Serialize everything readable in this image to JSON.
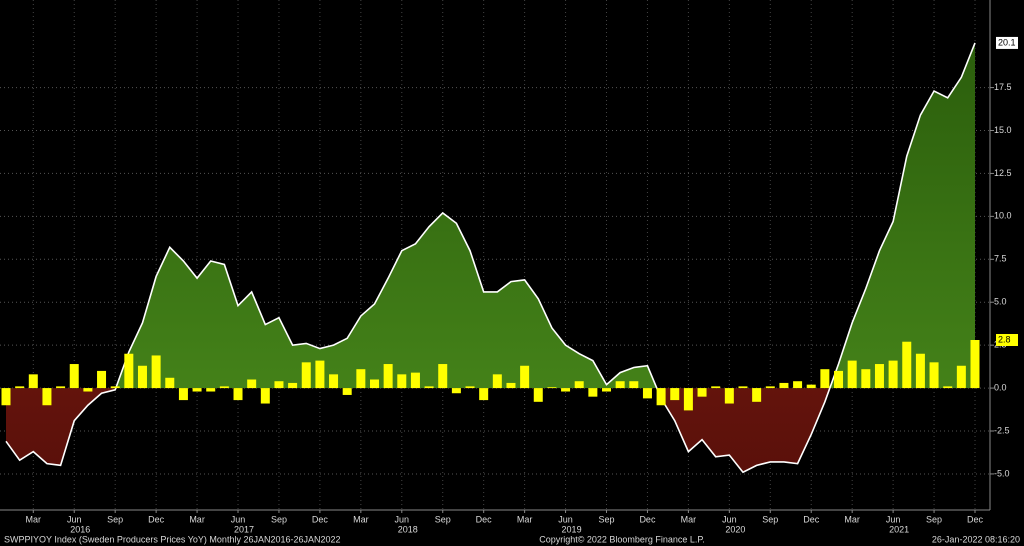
{
  "chart_data": {
    "type": "combo",
    "categories": [
      null,
      null,
      "Mar",
      null,
      null,
      "Jun",
      null,
      null,
      "Sep",
      null,
      null,
      "Dec",
      null,
      null,
      "Mar",
      null,
      null,
      "Jun",
      null,
      null,
      "Sep",
      null,
      null,
      "Dec",
      null,
      null,
      "Mar",
      null,
      null,
      "Jun",
      null,
      null,
      "Sep",
      null,
      null,
      "Dec",
      null,
      null,
      "Mar",
      null,
      null,
      "Jun",
      null,
      null,
      "Sep",
      null,
      null,
      "Dec",
      null,
      null,
      "Mar",
      null,
      null,
      "Jun",
      null,
      null,
      "Sep",
      null,
      null,
      "Dec",
      null,
      null,
      "Mar",
      null,
      null,
      "Jun",
      null,
      null,
      "Sep",
      null,
      null,
      "Dec"
    ],
    "years": [
      "2016",
      "2017",
      "2018",
      "2019",
      "2020",
      "2021"
    ],
    "series": [
      {
        "type": "area",
        "color": "#ffffff",
        "positive_color": "#3f7d14",
        "negative_color": "#7a1c12",
        "values": [
          -3.1,
          -4.2,
          -3.7,
          -4.4,
          -4.5,
          -1.9,
          -1.0,
          -0.3,
          -0.1,
          2.1,
          3.8,
          6.5,
          8.2,
          7.4,
          6.4,
          7.4,
          7.2,
          4.8,
          5.6,
          3.7,
          4.1,
          2.5,
          2.6,
          2.3,
          2.5,
          2.9,
          4.2,
          4.9,
          6.4,
          8.0,
          8.4,
          9.4,
          10.2,
          9.6,
          8.0,
          5.6,
          5.6,
          6.2,
          6.3,
          5.2,
          3.5,
          2.5,
          2.0,
          1.6,
          0.2,
          0.9,
          1.2,
          1.3,
          -0.6,
          -1.9,
          -3.7,
          -3.0,
          -4.0,
          -3.9,
          -4.9,
          -4.5,
          -4.3,
          -4.3,
          -4.4,
          -2.7,
          -0.8,
          1.4,
          3.8,
          5.8,
          8.0,
          9.7,
          13.5,
          15.9,
          17.3,
          16.9,
          18.1,
          20.1
        ]
      },
      {
        "type": "bar",
        "color": "#ffff00",
        "values": [
          -1.0,
          0.1,
          0.8,
          -1.0,
          0.1,
          1.4,
          -0.2,
          1.0,
          0.1,
          2.0,
          1.3,
          1.9,
          0.6,
          -0.7,
          -0.2,
          -0.2,
          0.1,
          -0.7,
          0.5,
          -0.9,
          0.4,
          0.3,
          1.5,
          1.6,
          0.8,
          -0.4,
          1.1,
          0.5,
          1.4,
          0.8,
          0.9,
          0.1,
          1.4,
          -0.3,
          0.1,
          -0.7,
          0.8,
          0.3,
          1.3,
          -0.8,
          0.05,
          -0.2,
          0.4,
          -0.5,
          -0.2,
          0.4,
          0.4,
          -0.6,
          -1.0,
          -0.7,
          -1.3,
          -0.5,
          0.1,
          -0.9,
          0.1,
          -0.8,
          0.1,
          0.3,
          0.4,
          0.2,
          1.1,
          1.0,
          1.6,
          1.1,
          1.4,
          1.6,
          2.7,
          2.0,
          1.5,
          0.1,
          1.3,
          2.8
        ]
      }
    ],
    "ylim": [
      -7.1,
      22.6
    ],
    "yticks": [
      {
        "value": -5,
        "label": "-5.0"
      },
      {
        "value": -2.5,
        "label": "-2.5"
      },
      {
        "value": 0,
        "label": "0.0"
      },
      {
        "value": 2.5,
        "label": "2.5"
      },
      {
        "value": 5,
        "label": "5.0"
      },
      {
        "value": 7.5,
        "label": "7.5"
      },
      {
        "value": 10,
        "label": "10.0"
      },
      {
        "value": 12.5,
        "label": "12.5"
      },
      {
        "value": 15,
        "label": "15.0"
      },
      {
        "value": 17.5,
        "label": "17.5"
      }
    ],
    "grid": true,
    "footer": [
      "SWPPIYOY Index (Sweden Producers Prices YoY)  Monthly 26JAN2016-26JAN2022",
      "Copyright© 2022 Bloomberg Finance L.P.",
      "26-Jan-2022 08:16:20"
    ]
  }
}
